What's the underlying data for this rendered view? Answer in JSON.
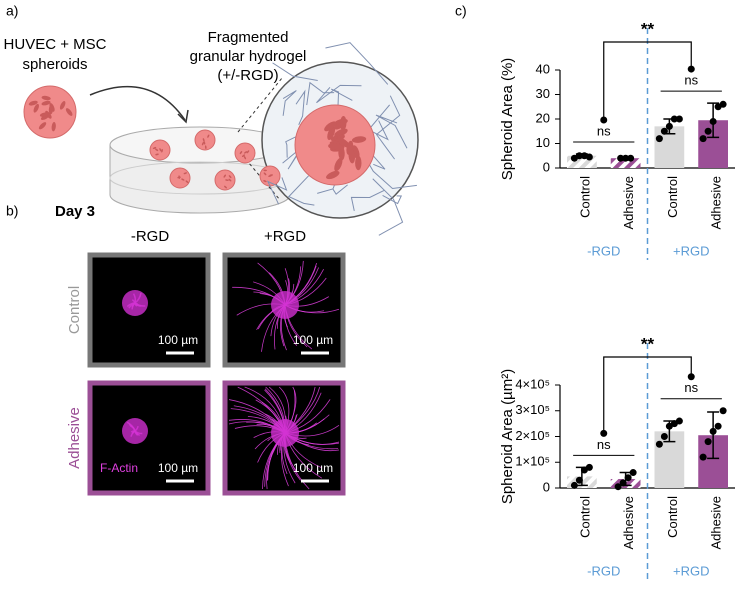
{
  "panel_labels": [
    "a)",
    "b)",
    "c)"
  ],
  "illustration": {
    "cells_label": [
      "HUVEC + MSC",
      "spheroids"
    ],
    "hydrogel_label": [
      "Fragmented",
      "granular hydrogel",
      "(+/-RGD)"
    ]
  },
  "microscopy": {
    "day": "Day 3",
    "columns": [
      "-RGD",
      "+RGD"
    ],
    "rows": [
      "Control",
      "Adhesive"
    ],
    "scale_bar": "100 µm",
    "stain": "F-Actin"
  },
  "chart_data": [
    {
      "type": "bar",
      "ylabel": "Spheroid Area (%)",
      "categories": [
        "Control",
        "Adhesive",
        "Control",
        "Adhesive"
      ],
      "groups": [
        "-RGD",
        "+RGD"
      ],
      "values": [
        5,
        4,
        17,
        19.5
      ],
      "errors": [
        0.7,
        0.3,
        3,
        7
      ],
      "points": [
        [
          4,
          5,
          5,
          4.5
        ],
        [
          4,
          4,
          4
        ],
        [
          12,
          15,
          17,
          20,
          20
        ],
        [
          12,
          15,
          19,
          25,
          26
        ]
      ],
      "colors": [
        "#d9d9d9",
        "#9b4f96",
        "#d9d9d9",
        "#9b4f96"
      ],
      "hatched": [
        true,
        true,
        false,
        false
      ],
      "annotations": [
        "ns",
        "ns",
        "**"
      ],
      "ylim": [
        0,
        40
      ],
      "yticks": [
        0,
        10,
        20,
        30,
        40
      ]
    },
    {
      "type": "bar",
      "ylabel": "Spheroid Area (µm²)",
      "categories": [
        "Control",
        "Adhesive",
        "Control",
        "Adhesive"
      ],
      "groups": [
        "-RGD",
        "+RGD"
      ],
      "values": [
        45000,
        35000,
        220000,
        205000
      ],
      "errors": [
        35000,
        25000,
        40000,
        90000
      ],
      "points": [
        [
          10000,
          30000,
          70000,
          80000
        ],
        [
          5000,
          20000,
          40000,
          60000
        ],
        [
          170000,
          200000,
          240000,
          250000,
          260000
        ],
        [
          120000,
          180000,
          220000,
          240000,
          300000
        ]
      ],
      "colors": [
        "#d9d9d9",
        "#9b4f96",
        "#d9d9d9",
        "#9b4f96"
      ],
      "hatched": [
        true,
        true,
        false,
        false
      ],
      "annotations": [
        "ns",
        "ns",
        "**"
      ],
      "ylim": [
        0,
        400000
      ],
      "yticks": [
        0,
        {
          "value": 100000,
          "label": "1×10⁵"
        },
        {
          "value": 200000,
          "label": "2×10⁵"
        },
        {
          "value": 300000,
          "label": "3×10⁵"
        },
        {
          "value": 400000,
          "label": "4×10⁵"
        }
      ]
    }
  ]
}
